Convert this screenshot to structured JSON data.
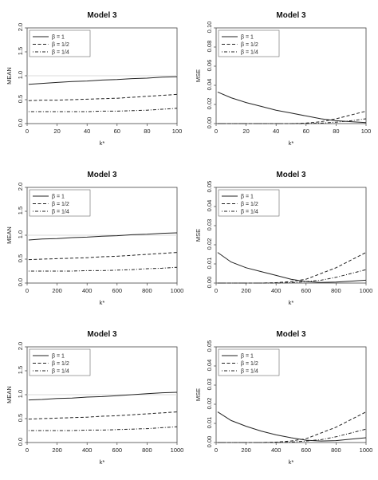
{
  "chart_data": [
    {
      "type": "line",
      "title": "Model 3",
      "xlabel": "k*",
      "ylabel": "MEAN",
      "xlim": [
        0,
        100
      ],
      "ylim": [
        0,
        2.0
      ],
      "xticks": [
        "0",
        "20",
        "40",
        "60",
        "80",
        "100"
      ],
      "yticks": [
        "0.0",
        "0.5",
        "1.0",
        "1.5",
        "2.0"
      ],
      "legend": "top-left",
      "refline": 1.0,
      "x": [
        1,
        10,
        20,
        30,
        40,
        50,
        60,
        70,
        80,
        90,
        100
      ],
      "series": [
        {
          "name": "β = 1",
          "dash": "solid",
          "values": [
            0.82,
            0.84,
            0.86,
            0.88,
            0.89,
            0.91,
            0.92,
            0.94,
            0.95,
            0.97,
            0.98
          ]
        },
        {
          "name": "β = 1/2",
          "dash": "dashed",
          "values": [
            0.48,
            0.49,
            0.49,
            0.5,
            0.51,
            0.52,
            0.53,
            0.55,
            0.57,
            0.59,
            0.61
          ]
        },
        {
          "name": "β = 1/4",
          "dash": "dotdash",
          "values": [
            0.25,
            0.25,
            0.25,
            0.25,
            0.25,
            0.26,
            0.26,
            0.27,
            0.28,
            0.3,
            0.32
          ]
        }
      ]
    },
    {
      "type": "line",
      "title": "Model 3",
      "xlabel": "k*",
      "ylabel": "MSE",
      "xlim": [
        0,
        100
      ],
      "ylim": [
        0,
        0.1
      ],
      "xticks": [
        "0",
        "20",
        "40",
        "60",
        "80",
        "100"
      ],
      "yticks": [
        "0.00",
        "0.02",
        "0.04",
        "0.06",
        "0.08",
        "0.10"
      ],
      "legend": "top-left",
      "x": [
        1,
        10,
        20,
        30,
        40,
        50,
        60,
        70,
        80,
        90,
        100
      ],
      "series": [
        {
          "name": "β = 1",
          "dash": "solid",
          "values": [
            0.033,
            0.027,
            0.022,
            0.018,
            0.014,
            0.011,
            0.008,
            0.005,
            0.003,
            0.002,
            0.001
          ]
        },
        {
          "name": "β = 1/2",
          "dash": "dashed",
          "values": [
            0.0,
            0.0,
            0.0,
            0.0,
            0.0,
            0.0,
            0.0005,
            0.002,
            0.005,
            0.009,
            0.013
          ]
        },
        {
          "name": "β = 1/4",
          "dash": "dotdash",
          "values": [
            0.0,
            0.0,
            0.0,
            0.0,
            0.0,
            0.0,
            0.0,
            0.0005,
            0.0015,
            0.003,
            0.005
          ]
        }
      ]
    },
    {
      "type": "line",
      "title": "Model 3",
      "xlabel": "k*",
      "ylabel": "MEAN",
      "xlim": [
        0,
        1000
      ],
      "ylim": [
        0,
        2.0
      ],
      "xticks": [
        "0",
        "200",
        "400",
        "600",
        "800",
        "1000"
      ],
      "yticks": [
        "0.0",
        "0.5",
        "1.0",
        "1.5",
        "2.0"
      ],
      "legend": "top-left",
      "refline": 1.0,
      "x": [
        10,
        100,
        200,
        300,
        400,
        500,
        600,
        700,
        800,
        900,
        1000
      ],
      "series": [
        {
          "name": "β = 1",
          "dash": "solid",
          "values": [
            0.9,
            0.92,
            0.93,
            0.95,
            0.96,
            0.98,
            0.99,
            1.01,
            1.02,
            1.04,
            1.05
          ]
        },
        {
          "name": "β = 1/2",
          "dash": "dashed",
          "values": [
            0.49,
            0.5,
            0.51,
            0.52,
            0.53,
            0.55,
            0.56,
            0.58,
            0.6,
            0.62,
            0.64
          ]
        },
        {
          "name": "β = 1/4",
          "dash": "dotdash",
          "values": [
            0.25,
            0.25,
            0.25,
            0.25,
            0.26,
            0.26,
            0.27,
            0.28,
            0.3,
            0.31,
            0.33
          ]
        }
      ]
    },
    {
      "type": "line",
      "title": "Model 3",
      "xlabel": "k*",
      "ylabel": "MSE",
      "xlim": [
        0,
        1000
      ],
      "ylim": [
        0,
        0.05
      ],
      "xticks": [
        "0",
        "200",
        "400",
        "600",
        "800",
        "1000"
      ],
      "yticks": [
        "0.00",
        "0.01",
        "0.02",
        "0.03",
        "0.04",
        "0.05"
      ],
      "legend": "top-left",
      "x": [
        10,
        100,
        200,
        300,
        400,
        500,
        600,
        700,
        800,
        900,
        1000
      ],
      "series": [
        {
          "name": "β = 1",
          "dash": "solid",
          "values": [
            0.016,
            0.011,
            0.008,
            0.006,
            0.004,
            0.002,
            0.0008,
            0.0003,
            0.0005,
            0.001,
            0.0015
          ]
        },
        {
          "name": "β = 1/2",
          "dash": "dashed",
          "values": [
            0.0,
            0.0,
            0.0,
            0.0,
            0.0002,
            0.0008,
            0.002,
            0.005,
            0.008,
            0.012,
            0.016
          ]
        },
        {
          "name": "β = 1/4",
          "dash": "dotdash",
          "values": [
            0.0,
            0.0,
            0.0,
            0.0,
            0.0,
            0.0002,
            0.0008,
            0.0015,
            0.003,
            0.005,
            0.007
          ]
        }
      ]
    },
    {
      "type": "line",
      "title": "Model 3",
      "xlabel": "k*",
      "ylabel": "MEAN",
      "xlim": [
        0,
        1000
      ],
      "ylim": [
        0,
        2.0
      ],
      "xticks": [
        "0",
        "200",
        "400",
        "600",
        "800",
        "1000"
      ],
      "yticks": [
        "0.0",
        "0.5",
        "1.0",
        "1.5",
        "2.0"
      ],
      "legend": "top-left",
      "refline": 1.0,
      "x": [
        10,
        100,
        200,
        300,
        400,
        500,
        600,
        700,
        800,
        900,
        1000
      ],
      "series": [
        {
          "name": "β = 1",
          "dash": "solid",
          "values": [
            0.89,
            0.9,
            0.92,
            0.93,
            0.95,
            0.96,
            0.98,
            1.0,
            1.02,
            1.04,
            1.05
          ]
        },
        {
          "name": "β = 1/2",
          "dash": "dashed",
          "values": [
            0.49,
            0.5,
            0.51,
            0.52,
            0.53,
            0.55,
            0.56,
            0.58,
            0.6,
            0.62,
            0.64
          ]
        },
        {
          "name": "β = 1/4",
          "dash": "dotdash",
          "values": [
            0.25,
            0.25,
            0.25,
            0.25,
            0.26,
            0.26,
            0.27,
            0.28,
            0.29,
            0.31,
            0.33
          ]
        }
      ]
    },
    {
      "type": "line",
      "title": "Model 3",
      "xlabel": "k*",
      "ylabel": "MSE",
      "xlim": [
        0,
        1000
      ],
      "ylim": [
        0,
        0.05
      ],
      "xticks": [
        "0",
        "200",
        "400",
        "600",
        "800",
        "1000"
      ],
      "yticks": [
        "0.00",
        "0.01",
        "0.02",
        "0.03",
        "0.04",
        "0.05"
      ],
      "legend": "top-left",
      "x": [
        10,
        100,
        200,
        300,
        400,
        500,
        600,
        700,
        800,
        900,
        1000
      ],
      "series": [
        {
          "name": "β = 1",
          "dash": "solid",
          "values": [
            0.016,
            0.0115,
            0.0085,
            0.006,
            0.004,
            0.0025,
            0.0012,
            0.0008,
            0.001,
            0.0018,
            0.0025
          ]
        },
        {
          "name": "β = 1/2",
          "dash": "dashed",
          "values": [
            0.0,
            0.0,
            0.0,
            0.0,
            0.0002,
            0.0008,
            0.002,
            0.005,
            0.008,
            0.012,
            0.016
          ]
        },
        {
          "name": "β = 1/4",
          "dash": "dotdash",
          "values": [
            0.0,
            0.0,
            0.0,
            0.0,
            0.0,
            0.0002,
            0.0008,
            0.0015,
            0.003,
            0.005,
            0.007
          ]
        }
      ]
    }
  ]
}
